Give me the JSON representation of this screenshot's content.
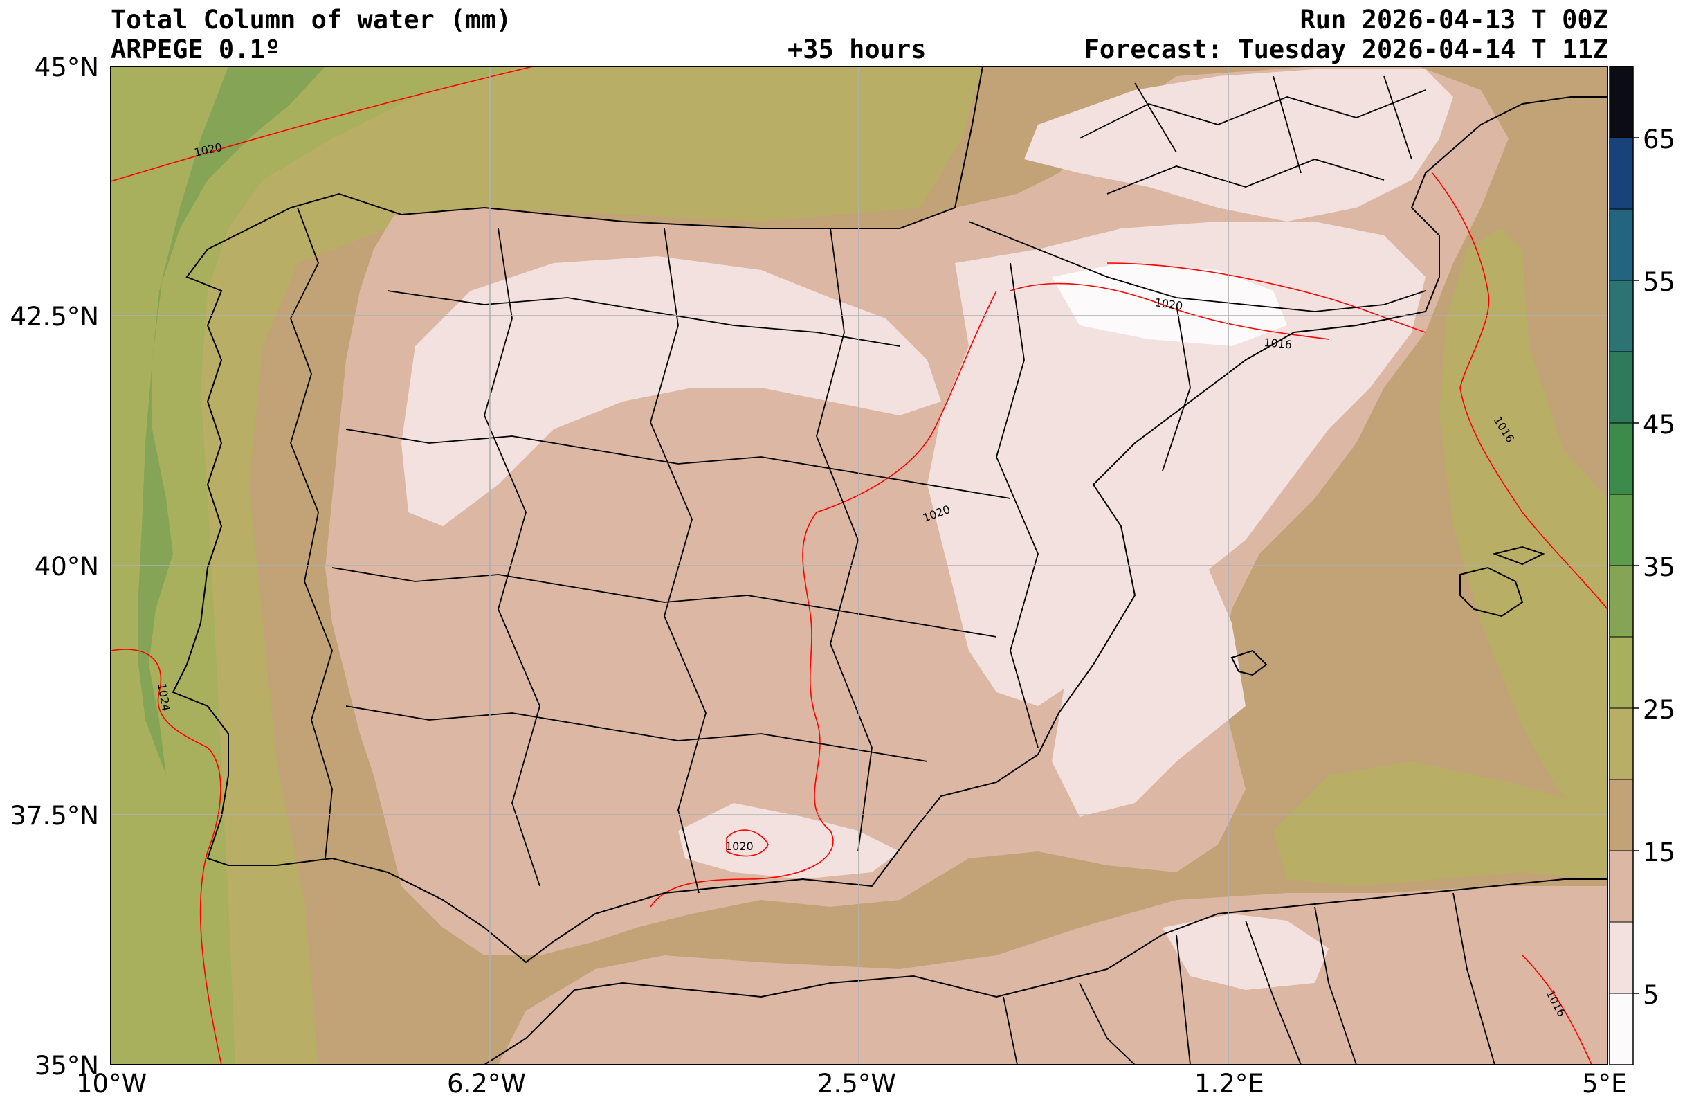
{
  "header": {
    "title": "Total Column of water (mm)",
    "model": "ARPEGE 0.1º",
    "lead_time": "+35 hours",
    "run": "Run 2026-04-13 T 00Z",
    "forecast": "Forecast: Tuesday 2026-04-14 T 11Z"
  },
  "axes": {
    "lat_ticks": [
      "45°N",
      "42.5°N",
      "40°N",
      "37.5°N",
      "35°N"
    ],
    "lon_ticks": [
      "10°W",
      "6.2°W",
      "2.5°W",
      "1.2°E",
      "5°E"
    ],
    "lat_range": [
      35,
      45
    ],
    "lon_range": [
      -10,
      5
    ]
  },
  "colorbar": {
    "tick_labels": [
      "5",
      "15",
      "25",
      "35",
      "45",
      "55",
      "65"
    ],
    "levels": [
      0,
      5,
      10,
      15,
      20,
      25,
      30,
      35,
      40,
      45,
      50,
      55,
      60,
      65,
      70
    ],
    "colors": [
      "#fcfafa",
      "#f2e1de",
      "#dcb7a3",
      "#c2a277",
      "#b9ae66",
      "#a9b05d",
      "#86a456",
      "#5d9c4c",
      "#3d8b4a",
      "#2f7a5a",
      "#2d7373",
      "#236580",
      "#18427a",
      "#0c0c14"
    ]
  },
  "isobars": {
    "color": "#ff0000",
    "labels": [
      "1020",
      "1020",
      "1016",
      "1016",
      "1020",
      "1024",
      "1020",
      "1016"
    ]
  },
  "map_colors": {
    "ocean_west": "#a9b05d",
    "ocean_deep": "#86a456",
    "ocean_far": "#b9ae66",
    "sea_med": "#c2a277",
    "land_dry": "#dcb7a3",
    "land_very_dry": "#f2e1de",
    "grid": "#b0b0b0",
    "border": "#000000"
  }
}
